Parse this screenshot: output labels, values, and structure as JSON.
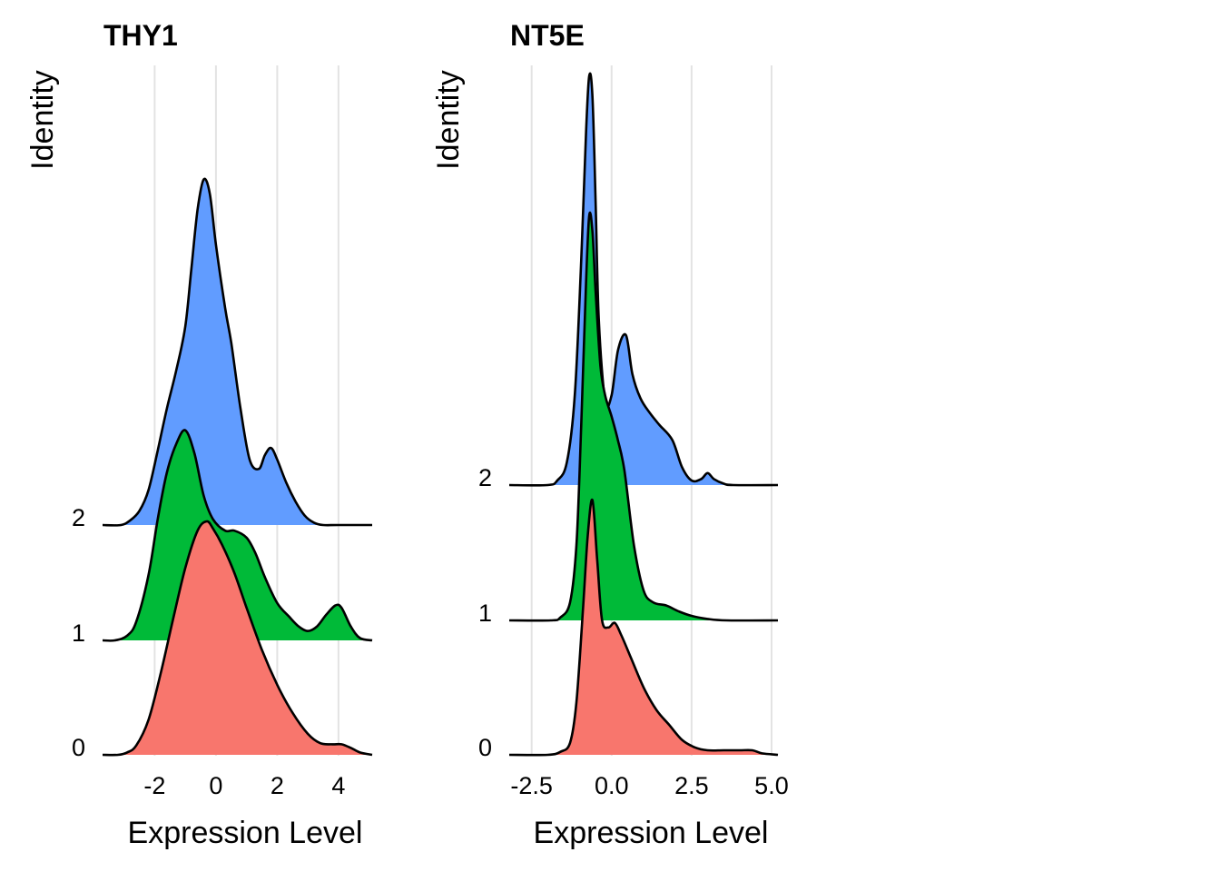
{
  "chart_data": [
    {
      "type": "area",
      "subtype": "ridgeline",
      "title": "THY1",
      "xlabel": "Expression Level",
      "ylabel": "Identity",
      "x_ticks": [
        -2,
        0,
        2,
        4
      ],
      "x_tick_labels": [
        "-2",
        "0",
        "2",
        "4"
      ],
      "xlim": [
        -3.7,
        5.1
      ],
      "grid": "vertical",
      "legend": "none",
      "categories": [
        "0",
        "1",
        "2"
      ],
      "series": [
        {
          "color": "#F8766D",
          "x": [
            -3.7,
            -3.2,
            -2.9,
            -2.6,
            -2.2,
            -1.8,
            -1.4,
            -1.0,
            -0.6,
            -0.3,
            -0.1,
            0.2,
            0.6,
            1.0,
            1.5,
            2.0,
            2.5,
            3.0,
            3.4,
            3.8,
            4.1,
            4.4,
            4.7,
            5.1
          ],
          "density": [
            0.0,
            0.0,
            0.01,
            0.04,
            0.15,
            0.35,
            0.58,
            0.8,
            0.96,
            1.0,
            0.97,
            0.9,
            0.78,
            0.63,
            0.45,
            0.3,
            0.18,
            0.09,
            0.05,
            0.045,
            0.045,
            0.03,
            0.01,
            0.0
          ]
        },
        {
          "color": "#00BA38",
          "x": [
            -3.7,
            -3.3,
            -2.9,
            -2.6,
            -2.2,
            -1.9,
            -1.6,
            -1.3,
            -1.0,
            -0.7,
            -0.4,
            -0.1,
            0.3,
            0.6,
            1.0,
            1.3,
            1.6,
            2.0,
            2.4,
            2.7,
            3.0,
            3.3,
            3.6,
            3.9,
            4.1,
            4.4,
            4.7,
            5.1
          ],
          "density": [
            0.0,
            0.0,
            0.02,
            0.08,
            0.28,
            0.52,
            0.72,
            0.84,
            0.9,
            0.8,
            0.62,
            0.52,
            0.47,
            0.47,
            0.44,
            0.37,
            0.27,
            0.16,
            0.1,
            0.06,
            0.04,
            0.06,
            0.11,
            0.15,
            0.14,
            0.06,
            0.01,
            0.0
          ]
        },
        {
          "color": "#619CFF",
          "x": [
            -3.7,
            -3.1,
            -2.8,
            -2.5,
            -2.2,
            -1.9,
            -1.6,
            -1.3,
            -1.0,
            -0.8,
            -0.6,
            -0.4,
            -0.2,
            0.0,
            0.3,
            0.5,
            0.8,
            1.1,
            1.4,
            1.6,
            1.8,
            2.0,
            2.3,
            2.6,
            2.9,
            3.2,
            3.5,
            4.0,
            5.1
          ],
          "density": [
            0.0,
            0.0,
            0.02,
            0.06,
            0.15,
            0.32,
            0.5,
            0.66,
            0.85,
            1.1,
            1.35,
            1.48,
            1.42,
            1.2,
            0.93,
            0.78,
            0.5,
            0.28,
            0.24,
            0.3,
            0.33,
            0.28,
            0.18,
            0.1,
            0.04,
            0.01,
            0.0,
            0.0,
            0.0
          ]
        }
      ]
    },
    {
      "type": "area",
      "subtype": "ridgeline",
      "title": "NT5E",
      "xlabel": "Expression Level",
      "ylabel": "Identity",
      "x_ticks": [
        -2.5,
        0.0,
        2.5,
        5.0
      ],
      "x_tick_labels": [
        "-2.5",
        "0.0",
        "2.5",
        "5.0"
      ],
      "xlim": [
        -3.2,
        5.2
      ],
      "grid": "vertical",
      "legend": "none",
      "categories": [
        "0",
        "1",
        "2"
      ],
      "series": [
        {
          "color": "#F8766D",
          "x": [
            -3.2,
            -2.0,
            -1.6,
            -1.3,
            -1.1,
            -0.9,
            -0.75,
            -0.6,
            -0.45,
            -0.3,
            -0.1,
            0.1,
            0.3,
            0.6,
            1.0,
            1.4,
            1.8,
            2.2,
            2.6,
            3.0,
            3.5,
            4.0,
            4.4,
            4.7,
            5.2
          ],
          "density": [
            0.0,
            0.0,
            0.02,
            0.08,
            0.35,
            0.95,
            1.45,
            1.7,
            1.3,
            0.9,
            0.85,
            0.88,
            0.8,
            0.65,
            0.45,
            0.3,
            0.2,
            0.1,
            0.05,
            0.03,
            0.03,
            0.03,
            0.03,
            0.01,
            0.0
          ]
        },
        {
          "color": "#00BA38",
          "x": [
            -3.2,
            -1.9,
            -1.6,
            -1.3,
            -1.1,
            -0.95,
            -0.8,
            -0.7,
            -0.6,
            -0.5,
            -0.35,
            -0.2,
            0.0,
            0.2,
            0.4,
            0.7,
            1.0,
            1.3,
            1.7,
            2.1,
            2.5,
            3.0,
            3.6,
            5.2
          ],
          "density": [
            0.0,
            0.0,
            0.02,
            0.12,
            0.5,
            1.3,
            2.25,
            2.7,
            2.6,
            2.2,
            1.7,
            1.5,
            1.36,
            1.2,
            1.0,
            0.5,
            0.2,
            0.12,
            0.1,
            0.06,
            0.03,
            0.01,
            0.0,
            0.0
          ]
        },
        {
          "color": "#619CFF",
          "x": [
            -3.2,
            -2.0,
            -1.7,
            -1.4,
            -1.15,
            -0.95,
            -0.8,
            -0.7,
            -0.6,
            -0.5,
            -0.4,
            -0.2,
            0.0,
            0.2,
            0.45,
            0.65,
            0.9,
            1.2,
            1.5,
            1.9,
            2.2,
            2.5,
            2.8,
            3.0,
            3.2,
            3.5,
            3.8,
            5.2
          ],
          "density": [
            0.0,
            0.0,
            0.03,
            0.15,
            0.6,
            1.5,
            2.35,
            2.73,
            2.6,
            1.9,
            1.1,
            0.56,
            0.6,
            0.9,
            1.0,
            0.74,
            0.58,
            0.48,
            0.4,
            0.3,
            0.12,
            0.03,
            0.04,
            0.08,
            0.04,
            0.01,
            0.0,
            0.0
          ]
        }
      ]
    }
  ]
}
